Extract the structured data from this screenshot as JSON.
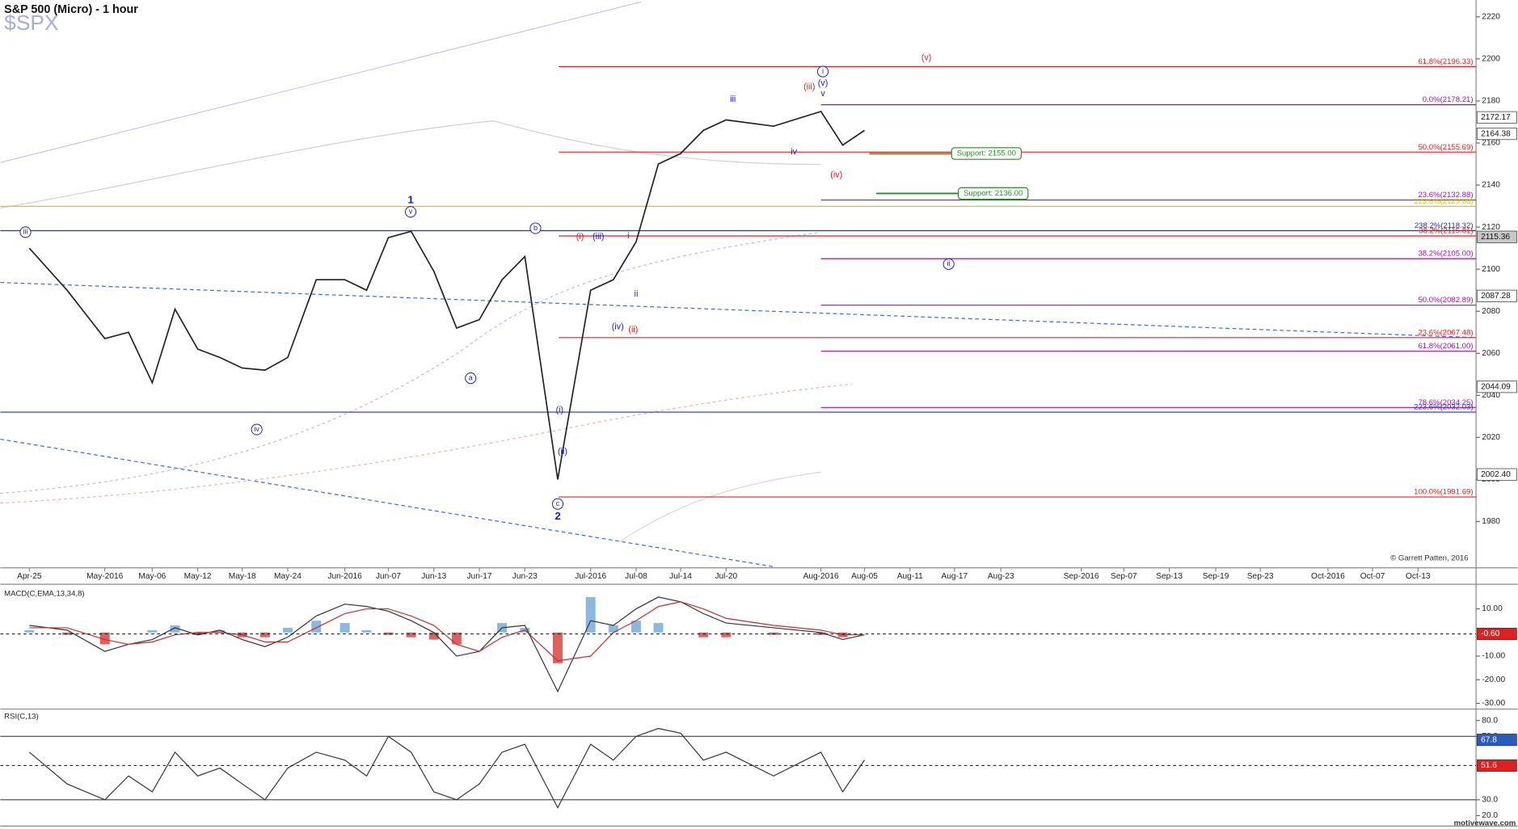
{
  "chart_data": [
    {
      "type": "line",
      "title": "S&P 500 (Micro) - 1 hour",
      "subtitle": "$SPX",
      "credit": "© Garrett Patten, 2016",
      "footer": "motivewave.com",
      "categories": [
        "Apr-25",
        null,
        "May-2016",
        null,
        "May-06",
        null,
        "May-12",
        null,
        "May-18",
        null,
        "May-24",
        null,
        "Jun-2016",
        null,
        "Jun-07",
        null,
        "Jun-13",
        null,
        "Jun-17",
        null,
        "Jun-23",
        null,
        "Jul-2016",
        null,
        "Jul-08",
        null,
        "Jul-14",
        null,
        "Jul-20",
        null,
        "Aug-2016",
        null,
        "Aug-05",
        null,
        "Aug-11",
        null,
        "Aug-17",
        null,
        "Aug-23",
        null,
        "Sep-2016",
        null,
        "Sep-07",
        null,
        "Sep-13",
        null,
        "Sep-19",
        null,
        "Sep-23",
        null,
        "Oct-2016",
        null,
        "Oct-07",
        null,
        "Oct-13"
      ],
      "values": [
        2110,
        2090,
        2067,
        2070,
        2046,
        2081,
        2062,
        2058,
        2053,
        2052,
        2058,
        2095,
        2095,
        2090,
        2115,
        2118,
        2099,
        2072,
        2076,
        2095,
        2106,
        2000,
        2090,
        2095,
        2113,
        2150,
        2155,
        2166,
        2171,
        2168,
        2175,
        2159,
        2166,
        null,
        null,
        null,
        null,
        null,
        null,
        null,
        null,
        null,
        null,
        null,
        null,
        null,
        null,
        null,
        null,
        null,
        null,
        null,
        null,
        null,
        null
      ],
      "color": "#222222",
      "ylim": [
        1958,
        2228
      ],
      "yticks": [
        1980,
        2000,
        2020,
        2040,
        2060,
        2080,
        2100,
        2120,
        2140,
        2160,
        2180,
        2200,
        2220
      ],
      "markers": {
        "values": [
          2172.17,
          2164.38,
          2115.36,
          2087.28,
          2044.09,
          2002.4
        ],
        "value_labels": [
          "2172.17",
          "2164.38",
          "2115.36",
          "2087.28",
          "2044.09",
          "2002.40"
        ],
        "colors": [
          "#ffffff",
          "#ffffff",
          "#c8c8c8",
          "#ffffff",
          "#ffffff",
          "#ffffff"
        ]
      },
      "levels": [
        {
          "label": "61.8%(2196.33)",
          "value": 2196.33,
          "color": "#e02020"
        },
        {
          "label": "0.0%(2178.21)",
          "value": 2178.21,
          "color": "#a010b0"
        },
        {
          "label": "50.0%(2155.69)",
          "value": 2155.69,
          "color": "#e02020"
        },
        {
          "label": "23.6%(2132.88)",
          "value": 2132.88,
          "color": "#a010b0"
        },
        {
          "label": "123.6%(2129.88)",
          "value": 2129.88,
          "color": "#f0c000"
        },
        {
          "label": "238.2%(2118.32)",
          "value": 2118.32,
          "color": "#2030c0"
        },
        {
          "label": "38.2%(2115.81)",
          "value": 2115.81,
          "color": "#e02020"
        },
        {
          "label": "38.2%(2105.00)",
          "value": 2105,
          "color": "#a010b0"
        },
        {
          "label": "50.0%(2082.89)",
          "value": 2082.89,
          "color": "#a010b0"
        },
        {
          "label": "23.6%(2067.48)",
          "value": 2067.48,
          "color": "#e02020"
        },
        {
          "label": "61.8%(2061.00)",
          "value": 2061,
          "color": "#a010b0"
        },
        {
          "label": "78.6%(2034.25)",
          "value": 2034.25,
          "color": "#a010b0"
        },
        {
          "label": "223.6%(2032.03)",
          "value": 2032.03,
          "color": "#2030c0"
        },
        {
          "label": "100.0%(1991.69)",
          "value": 1991.69,
          "color": "#e02020"
        }
      ],
      "supports": [
        {
          "label": "Support: 2155.00",
          "value": 2155,
          "color": "#2a8a2a",
          "line_color": "#a09060"
        },
        {
          "label": "Support: 2136.00",
          "value": 2136,
          "color": "#2a8a2a",
          "line_color": "#2a8a2a"
        }
      ],
      "annotations": [
        {
          "text": "iii",
          "color": "#1a1acc",
          "style": "circled"
        },
        {
          "text": "iv",
          "color": "#1a1acc",
          "style": "circled"
        },
        {
          "text": "v",
          "color": "#1a1acc",
          "style": "circled"
        },
        {
          "text": "1",
          "color": "#1a1acc",
          "style": "bold"
        },
        {
          "text": "a",
          "color": "#1a1acc",
          "style": "circled"
        },
        {
          "text": "b",
          "color": "#1a1acc",
          "style": "circled"
        },
        {
          "text": "c",
          "color": "#1a1acc",
          "style": "circled"
        },
        {
          "text": "2",
          "color": "#1a1acc",
          "style": "bold"
        },
        {
          "text": "(i)",
          "color": "#1a1acc",
          "style": "plain"
        },
        {
          "text": "(ii)",
          "color": "#1a1acc",
          "style": "plain"
        },
        {
          "text": "(i)",
          "color": "#e02020",
          "style": "plain"
        },
        {
          "text": "(iii)",
          "color": "#1a1acc",
          "style": "plain"
        },
        {
          "text": "i",
          "color": "#1a1acc",
          "style": "plain"
        },
        {
          "text": "ii",
          "color": "#1a1acc",
          "style": "plain"
        },
        {
          "text": "(iv)",
          "color": "#1a1acc",
          "style": "plain"
        },
        {
          "text": "(ii)",
          "color": "#e02020",
          "style": "plain"
        },
        {
          "text": "iii",
          "color": "#1a1acc",
          "style": "plain"
        },
        {
          "text": "iv",
          "color": "#1a1acc",
          "style": "plain"
        },
        {
          "text": "(iii)",
          "color": "#e02020",
          "style": "plain"
        },
        {
          "text": "i",
          "color": "#1a1acc",
          "style": "circled"
        },
        {
          "text": "(v)",
          "color": "#1a1acc",
          "style": "plain"
        },
        {
          "text": "v",
          "color": "#1a1acc",
          "style": "plain"
        },
        {
          "text": "(iv)",
          "color": "#e02020",
          "style": "plain"
        },
        {
          "text": "(v)",
          "color": "#e02020",
          "style": "plain"
        },
        {
          "text": "ii",
          "color": "#1a1acc",
          "style": "circled"
        }
      ]
    },
    {
      "type": "macd",
      "title": "MACD(C,EMA,13,34,8)",
      "series": [
        {
          "color": "#333333",
          "values": [
            3,
            1,
            -8,
            -5,
            -3,
            2,
            -1,
            1,
            -3,
            -6,
            -2,
            7,
            12,
            11,
            9,
            5,
            0,
            -10,
            -8,
            2,
            3,
            -25,
            5,
            3,
            10,
            15,
            13,
            8,
            4,
            2,
            0,
            -3,
            -1,
            null,
            null,
            null,
            null,
            null,
            null,
            null,
            null,
            null,
            null,
            null,
            null,
            null,
            null,
            null,
            null,
            null,
            null,
            null,
            null,
            null,
            null
          ]
        },
        {
          "color": "#c03030",
          "values": [
            2,
            2,
            -3,
            -5,
            -4,
            -1,
            0,
            0,
            -1,
            -4,
            -4,
            2,
            8,
            10,
            10,
            7,
            3,
            -5,
            -8,
            -2,
            1,
            -12,
            -10,
            0,
            5,
            11,
            13,
            10,
            6,
            3,
            1,
            -1,
            -1,
            null,
            null,
            null,
            null,
            null,
            null,
            null,
            null,
            null,
            null,
            null,
            null,
            null,
            null,
            null,
            null,
            null,
            null,
            null,
            null,
            null,
            null
          ]
        }
      ],
      "histogram": {
        "values": [
          1,
          -1,
          -5,
          0,
          1,
          3,
          -1,
          1,
          -2,
          -2,
          2,
          5,
          4,
          1,
          -1,
          -2,
          -3,
          -5,
          0,
          4,
          2,
          -13,
          15,
          3,
          5,
          4,
          0,
          -2,
          -2,
          -1,
          -1,
          -2,
          0,
          null,
          null,
          null,
          null,
          null,
          null,
          null,
          null,
          null,
          null,
          null,
          null,
          null,
          null,
          null,
          null,
          null,
          null,
          null,
          null,
          null,
          null
        ],
        "colors": [
          "#8ab8e0",
          "#e06060"
        ]
      },
      "ylim": [
        -32,
        20
      ],
      "yticks": [
        {
          "value": 10,
          "label": "10.00"
        },
        {
          "value": -10,
          "label": "-10.00"
        },
        {
          "value": -20,
          "label": "-20.00"
        },
        {
          "value": -30,
          "label": "-30.00"
        }
      ],
      "markers": {
        "values": [
          -0.6
        ],
        "value_labels": [
          "-0.60"
        ],
        "colors": [
          "#e02020"
        ],
        "dashed": [
          true
        ]
      }
    },
    {
      "type": "rsi",
      "title": "RSI(C,13)",
      "values": [
        60,
        40,
        30,
        45,
        35,
        60,
        45,
        50,
        40,
        30,
        50,
        60,
        55,
        45,
        70,
        60,
        35,
        30,
        40,
        60,
        65,
        25,
        65,
        55,
        70,
        75,
        72,
        55,
        60,
        45,
        60,
        35,
        55,
        null,
        null,
        null,
        null,
        null,
        null,
        null,
        null,
        null,
        null,
        null,
        null,
        null,
        null,
        null,
        null,
        null,
        null,
        null,
        null,
        null,
        null
      ],
      "color": "#333333",
      "ylim": [
        14,
        86
      ],
      "yticks": [
        {
          "value": 80,
          "label": "80.0"
        },
        {
          "value": 70,
          "label": "70.0"
        },
        {
          "value": 30,
          "label": "30.0"
        },
        {
          "value": 20,
          "label": "20.0"
        }
      ],
      "levels": [
        70,
        30
      ],
      "markers": {
        "values": [
          67.8,
          51.6
        ],
        "value_labels": [
          "67.8",
          "51.6"
        ],
        "colors": [
          "#2a5cc0",
          "#e02020"
        ],
        "dashed": [
          false,
          true
        ]
      }
    }
  ]
}
